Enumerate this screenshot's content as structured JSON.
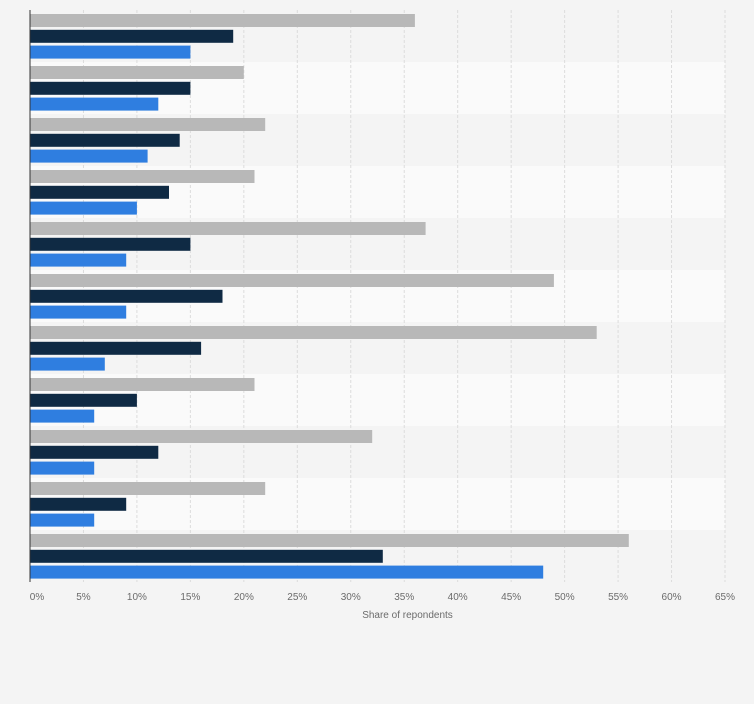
{
  "chart_data": {
    "type": "bar",
    "orientation": "horizontal",
    "title": "",
    "xlabel": "Share of repondents",
    "ylabel": "",
    "xlim": [
      0,
      65
    ],
    "x_ticks": [
      "0%",
      "5%",
      "10%",
      "15%",
      "20%",
      "25%",
      "30%",
      "35%",
      "40%",
      "45%",
      "50%",
      "55%",
      "60%",
      "65%"
    ],
    "categories": [
      "",
      "",
      "",
      "",
      "",
      "",
      "",
      "",
      "",
      "",
      ""
    ],
    "series": [
      {
        "color": "#b8b8b8",
        "values": [
          36,
          20,
          22,
          21,
          37,
          49,
          53,
          21,
          32,
          22,
          56
        ]
      },
      {
        "color": "#0f2a44",
        "values": [
          19,
          15,
          14,
          13,
          15,
          18,
          16,
          10,
          12,
          9,
          33
        ]
      },
      {
        "color": "#2f7ee0",
        "values": [
          15,
          12,
          11,
          10,
          9,
          9,
          7,
          6,
          6,
          6,
          48
        ]
      }
    ],
    "grid": true,
    "legend": "none"
  }
}
